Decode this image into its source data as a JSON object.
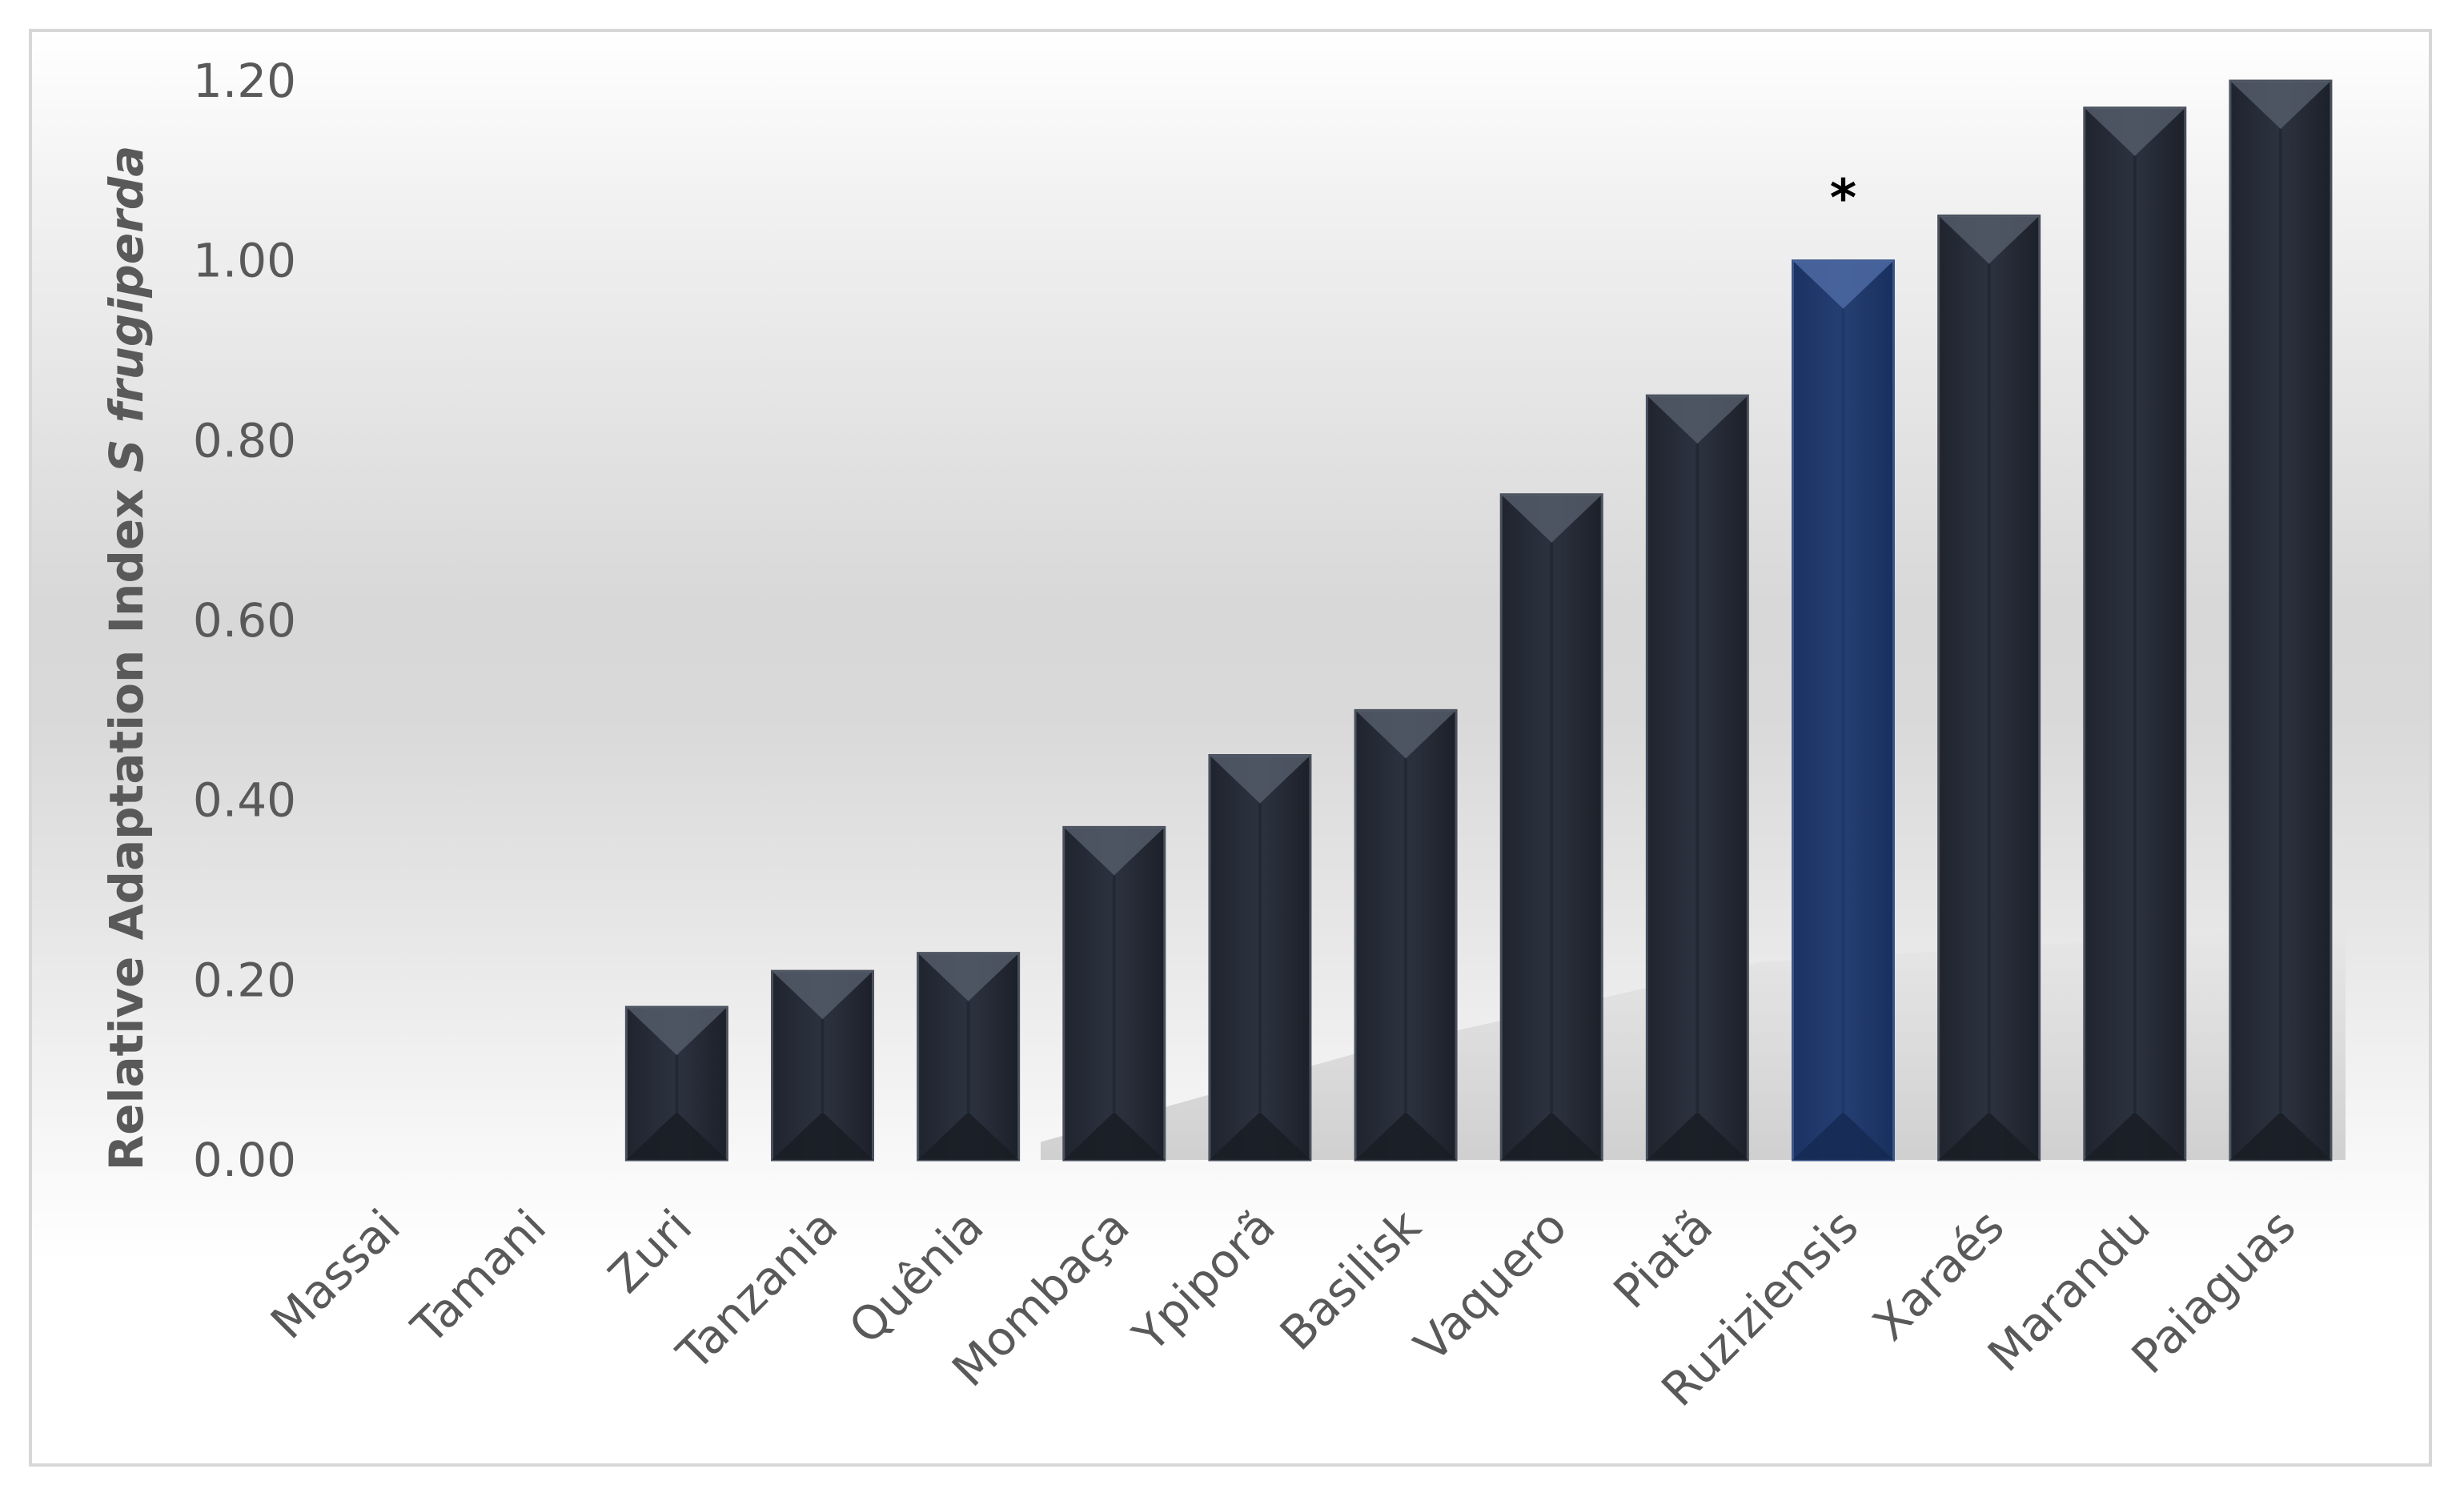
{
  "chart_data": {
    "type": "bar",
    "categories": [
      "Massai",
      "Tamani",
      "Zuri",
      "Tanzania",
      "Quênia",
      "Mombaça",
      "Ypiporã",
      "Basilisk",
      "Vaquero",
      "Piatã",
      "Ruziziensis",
      "Xaraés",
      "Marandu",
      "Paiaguas"
    ],
    "values": [
      0.0,
      0.0,
      0.17,
      0.21,
      0.23,
      0.37,
      0.45,
      0.5,
      0.74,
      0.85,
      1.0,
      1.05,
      1.17,
      1.2
    ],
    "ylabel": {
      "text": "Relative Adaptation Index ",
      "italic": "S  frugiperda"
    },
    "ylim": [
      0,
      1.2
    ],
    "yticks": [
      "0.00",
      "0.20",
      "0.40",
      "0.60",
      "0.80",
      "1.00",
      "1.20"
    ],
    "annotations": [
      {
        "category": "Ruziziensis",
        "text": "*"
      }
    ],
    "highlight_category": "Ruziziensis",
    "grid": false,
    "legend": "none",
    "colors": {
      "bar": "#2a303c",
      "bar_highlight": "#213a6a",
      "text": "#595959",
      "frame": "#d7d7d7"
    }
  }
}
